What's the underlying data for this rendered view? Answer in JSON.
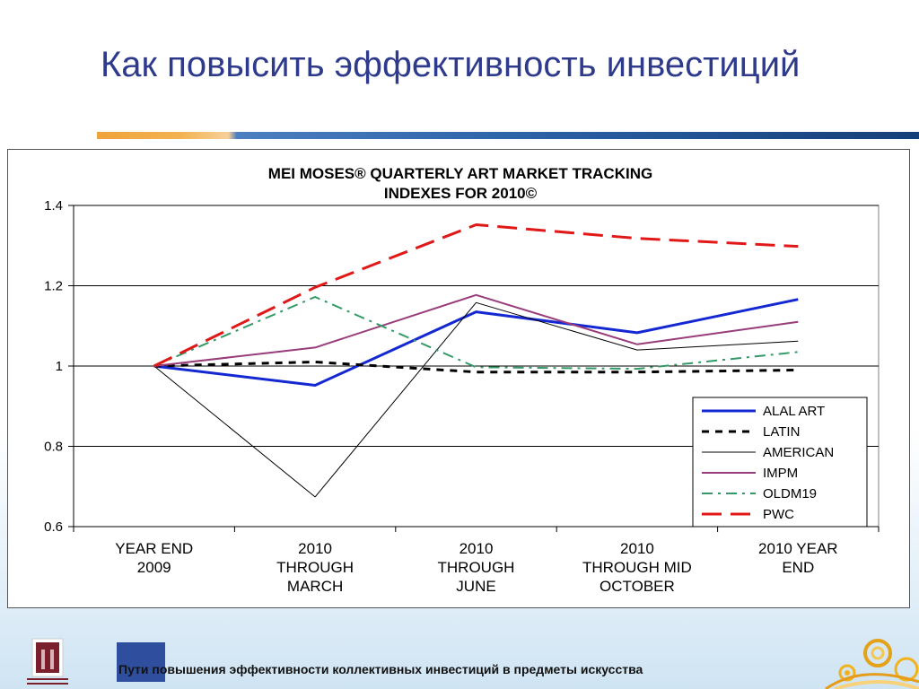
{
  "slide": {
    "title": "Как повысить эффективность инвестиций",
    "footer": "Пути повышения эффективности коллективных инвестиций в предметы искусства"
  },
  "colors": {
    "title": "#2e3a8c",
    "alal": "#1428d2",
    "latin": "#000000",
    "american": "#000000",
    "impm": "#993d7a",
    "oldm19": "#339966",
    "pwc": "#e01818"
  },
  "chart_data": {
    "type": "line",
    "title_line1": "MEI MOSES® QUARTERLY ART MARKET TRACKING",
    "title_line2": "INDEXES FOR 2010©",
    "xlabel": "",
    "ylabel": "",
    "ylim": [
      0.6,
      1.4
    ],
    "yticks": [
      "0.6",
      "0.8",
      "1",
      "1.2",
      "1.4"
    ],
    "ytick_values": [
      0.6,
      0.8,
      1.0,
      1.2,
      1.4
    ],
    "grid": true,
    "legend_position": "bottom-right",
    "categories": [
      [
        "YEAR END",
        "2009"
      ],
      [
        "2010",
        "THROUGH",
        "MARCH"
      ],
      [
        "2010",
        "THROUGH",
        "JUNE"
      ],
      [
        "2010",
        "THROUGH MID",
        "OCTOBER"
      ],
      [
        "2010 YEAR",
        "END"
      ]
    ],
    "series": [
      {
        "name": "ALAL ART",
        "values": [
          1.0,
          0.952,
          1.135,
          1.083,
          1.166
        ],
        "color": "#1428d2",
        "dash": "solid",
        "width": 3
      },
      {
        "name": "LATIN",
        "values": [
          1.0,
          1.01,
          0.985,
          0.985,
          0.99
        ],
        "color": "#000000",
        "dash": "dash",
        "width": 3
      },
      {
        "name": "AMERICAN",
        "values": [
          1.0,
          0.674,
          1.158,
          1.04,
          1.062
        ],
        "color": "#000000",
        "dash": "solid",
        "width": 1
      },
      {
        "name": "IMPM",
        "values": [
          1.0,
          1.046,
          1.177,
          1.054,
          1.11
        ],
        "color": "#993d7a",
        "dash": "solid",
        "width": 2
      },
      {
        "name": "OLDM19",
        "values": [
          1.0,
          1.172,
          0.997,
          0.993,
          1.035
        ],
        "color": "#339966",
        "dash": "dashdot",
        "width": 2
      },
      {
        "name": "PWC",
        "values": [
          1.0,
          1.196,
          1.352,
          1.318,
          1.298
        ],
        "color": "#e01818",
        "dash": "longdash",
        "width": 3
      }
    ]
  }
}
